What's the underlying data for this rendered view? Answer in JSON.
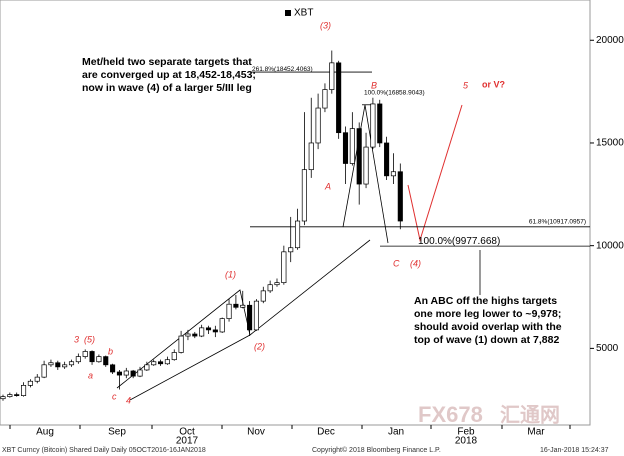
{
  "chart_data": {
    "type": "candlestick",
    "legend": "XBT",
    "open": [
      2550,
      2650,
      2750,
      2700,
      3200,
      3400,
      3600,
      4200,
      4300,
      4100,
      4200,
      4350,
      4600,
      4850,
      4350,
      4600,
      4200,
      3850,
      3700,
      3900,
      3650,
      3950,
      4200,
      4350,
      4250,
      4450,
      4800,
      5600,
      5700,
      5600,
      6000,
      5900,
      5800,
      6450,
      7150,
      7000,
      7100,
      5900,
      7300,
      7800,
      8100,
      8200,
      9700,
      9900,
      11200,
      13700,
      15000,
      16700,
      17600,
      18900,
      15500,
      14000,
      15700,
      13000,
      14800,
      16900,
      15000,
      13400,
      13600
    ],
    "high": [
      2750,
      2850,
      2850,
      3350,
      3500,
      3750,
      4400,
      4450,
      4400,
      4350,
      4450,
      4750,
      4950,
      4900,
      4700,
      4650,
      4250,
      3950,
      4050,
      3950,
      4100,
      4350,
      4450,
      4450,
      4600,
      4950,
      5850,
      5900,
      5800,
      6150,
      6100,
      6100,
      6500,
      7400,
      7600,
      7800,
      7300,
      7400,
      8000,
      8300,
      8400,
      10000,
      11400,
      11800,
      16500,
      17200,
      17400,
      17900,
      19500,
      19000,
      15800,
      16500,
      16000,
      15500,
      17200,
      17100,
      15300,
      14500,
      14000
    ],
    "low": [
      2450,
      2600,
      2650,
      2650,
      3100,
      3300,
      3550,
      4100,
      3950,
      4000,
      4100,
      4250,
      4500,
      4200,
      4300,
      4100,
      3750,
      3000,
      3550,
      3550,
      3600,
      3900,
      4150,
      4150,
      4200,
      4400,
      4750,
      5400,
      5500,
      5550,
      5700,
      5550,
      5750,
      6300,
      6900,
      6950,
      5600,
      5850,
      7200,
      7700,
      8000,
      8100,
      9200,
      9800,
      11000,
      13300,
      14700,
      16500,
      17400,
      15200,
      13000,
      13900,
      12000,
      12800,
      14700,
      14800,
      13200,
      13000,
      10800
    ],
    "close": [
      2650,
      2750,
      2700,
      3200,
      3400,
      3600,
      4200,
      4300,
      4100,
      4200,
      4350,
      4600,
      4850,
      4350,
      4600,
      4200,
      3850,
      3700,
      3900,
      3650,
      3950,
      4200,
      4350,
      4250,
      4450,
      4800,
      5600,
      5700,
      5600,
      6000,
      5900,
      5800,
      6450,
      7150,
      7000,
      7100,
      5900,
      7300,
      7800,
      8100,
      8200,
      9700,
      9900,
      11200,
      13700,
      15000,
      16700,
      17600,
      18900,
      15500,
      14000,
      15700,
      13000,
      14800,
      16900,
      15000,
      13400,
      13600,
      11200
    ],
    "ylim": [
      1270,
      21960
    ],
    "yticks": [
      5000,
      10000,
      15000,
      20000
    ],
    "months": [
      "Aug",
      "Sep",
      "Oct",
      "Nov",
      "Dec",
      "Jan",
      "Feb",
      "Mar"
    ],
    "years": [
      "2017",
      "2018"
    ],
    "levels": [
      {
        "value": 18452.4063,
        "label": "261.8%(18452.4063)"
      },
      {
        "value": 16858.9043,
        "label": "100.0%(16858.9043)"
      },
      {
        "value": 10917.0957,
        "label": "61.8%(10917.0957)"
      },
      {
        "value": 9977.668,
        "label": "100.0%(9977.668)"
      }
    ],
    "annotations": [
      "Met/held two separate targets that",
      "are converged up at 18,452-18,453;",
      "now in wave (4) of a larger 5/III leg",
      "An ABC off the highs targets",
      "one more leg lower to ~9,978;",
      "should avoid overlap with the",
      "top of wave (1) down at 7,882"
    ],
    "waves": [
      "(3)",
      "B",
      "5",
      "or V?",
      "A",
      "(1)",
      "(2)",
      "C",
      "(4)",
      "3",
      "(5)",
      "a",
      "b",
      "c",
      "4"
    ],
    "footer": [
      "XBT Curncy (Bitcoin) Shared Daily  Daily 05OCT2016-16JAN2018",
      "Copyright© 2018 Bloomberg Finance L.P.",
      "16-Jan-2018 15:24:37"
    ],
    "watermark": [
      "FX678",
      "汇通网"
    ]
  }
}
